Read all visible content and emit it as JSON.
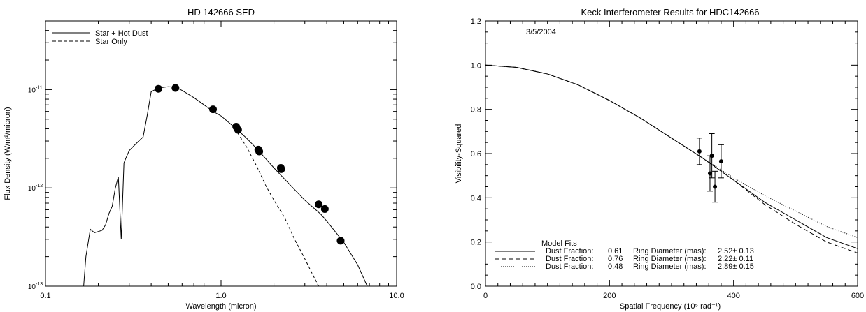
{
  "chart_data": [
    {
      "type": "line",
      "title": "HD 142666 SED",
      "xlabel": "Wavelength (micron)",
      "ylabel": "Flux Density (W/m²/micron)",
      "x_scale": "log",
      "y_scale": "log",
      "xlim": [
        0.1,
        10.0
      ],
      "ylim": [
        1e-13,
        5e-11
      ],
      "x_tick_labels": [
        {
          "value": 0.1,
          "label": "0.1"
        },
        {
          "value": 1.0,
          "label": "1.0"
        },
        {
          "value": 10.0,
          "label": "10.0"
        }
      ],
      "y_tick_labels": [
        {
          "value": 1e-13,
          "label": "10",
          "exp": "-13"
        },
        {
          "value": 1e-12,
          "label": "10",
          "exp": "-12"
        },
        {
          "value": 1e-11,
          "label": "10",
          "exp": "-11"
        }
      ],
      "legend": {
        "placement": "top-left",
        "entries": [
          {
            "label": "Star + Hot Dust",
            "style": "solid"
          },
          {
            "label": "Star Only",
            "style": "dashed"
          }
        ]
      },
      "series": [
        {
          "name": "Star + Hot Dust",
          "style": "solid",
          "x": [
            0.165,
            0.17,
            0.18,
            0.19,
            0.2,
            0.21,
            0.22,
            0.23,
            0.24,
            0.25,
            0.26,
            0.27,
            0.28,
            0.29,
            0.3,
            0.32,
            0.34,
            0.36,
            0.38,
            0.4,
            0.43,
            0.46,
            0.5,
            0.55,
            0.6,
            0.7,
            0.8,
            0.9,
            1.0,
            1.2,
            1.4,
            1.6,
            2.0,
            2.5,
            3.0,
            3.7,
            4.0,
            5.0,
            6.0,
            6.8
          ],
          "y": [
            1e-13,
            2e-13,
            3.8e-13,
            3.5e-13,
            3.6e-13,
            3.7e-13,
            4.2e-13,
            5.5e-13,
            6.5e-13,
            1e-12,
            1.3e-12,
            3e-13,
            1.8e-12,
            2.1e-12,
            2.4e-12,
            2.7e-12,
            3e-12,
            3.3e-12,
            5.5e-12,
            9.5e-12,
            1.02e-11,
            1.05e-11,
            1.07e-11,
            1.06e-11,
            9.8e-12,
            8.3e-12,
            7e-12,
            6e-12,
            5.4e-12,
            4.1e-12,
            3.2e-12,
            2.5e-12,
            1.6e-12,
            1.05e-12,
            7.5e-13,
            5.4e-13,
            4.6e-13,
            2.8e-13,
            1.65e-13,
            1e-13
          ]
        },
        {
          "name": "Star Only",
          "style": "dashed",
          "x": [
            1.2,
            1.4,
            1.6,
            1.8,
            2.0,
            2.3,
            2.6,
            3.0,
            3.3,
            3.6
          ],
          "y": [
            4e-12,
            2.6e-12,
            1.65e-12,
            1.05e-12,
            7.5e-13,
            5e-13,
            3.1e-13,
            1.9e-13,
            1.35e-13,
            1e-13
          ]
        }
      ],
      "points": {
        "x": [
          0.44,
          0.55,
          0.9,
          1.22,
          1.25,
          1.63,
          1.65,
          2.19,
          2.2,
          3.6,
          3.9,
          4.8
        ],
        "y": [
          1.02e-11,
          1.04e-11,
          6.3e-12,
          4.2e-12,
          3.9e-12,
          2.45e-12,
          2.35e-12,
          1.6e-12,
          1.55e-12,
          6.8e-13,
          6.1e-13,
          2.9e-13
        ]
      }
    },
    {
      "type": "line",
      "title": "Keck Interferometer Results for HDC142666",
      "xlabel": "Spatial Frequency (10⁵ rad⁻¹)",
      "ylabel": "Visibility-Squared",
      "annotation": "3/5/2004",
      "xlim": [
        0,
        600
      ],
      "ylim": [
        0.0,
        1.2
      ],
      "x_ticks": [
        0,
        200,
        400,
        600
      ],
      "x_tick_labels": [
        "0",
        "200",
        "400",
        "600"
      ],
      "y_ticks": [
        0.0,
        0.2,
        0.4,
        0.6,
        0.8,
        1.0,
        1.2
      ],
      "y_tick_labels": [
        "0.0",
        "0.2",
        "0.4",
        "0.6",
        "0.8",
        "1.0",
        "1.2"
      ],
      "legend": {
        "placement": "bottom-left",
        "heading": "Model Fits",
        "entries": [
          {
            "style": "solid",
            "dust_label": "Dust Fraction:",
            "dust_value": "0.61",
            "ring_label": "Ring Diameter (mas):",
            "ring_value": "2.52± 0.13"
          },
          {
            "style": "dashed",
            "dust_label": "Dust Fraction:",
            "dust_value": "0.76",
            "ring_label": "Ring Diameter (mas):",
            "ring_value": "2.22± 0.11"
          },
          {
            "style": "dotted",
            "dust_label": "Dust Fraction:",
            "dust_value": "0.48",
            "ring_label": "Ring Diameter (mas):",
            "ring_value": "2.89± 0.15"
          }
        ]
      },
      "series": [
        {
          "style": "solid",
          "x": [
            0,
            50,
            100,
            150,
            200,
            250,
            300,
            350,
            400,
            450,
            500,
            550,
            600
          ],
          "y": [
            1.0,
            0.99,
            0.96,
            0.91,
            0.84,
            0.76,
            0.67,
            0.58,
            0.48,
            0.38,
            0.3,
            0.22,
            0.17
          ]
        },
        {
          "style": "dashed",
          "x": [
            0,
            50,
            100,
            150,
            200,
            250,
            300,
            350,
            400,
            450,
            500,
            550,
            600
          ],
          "y": [
            1.0,
            0.99,
            0.96,
            0.91,
            0.84,
            0.76,
            0.67,
            0.58,
            0.48,
            0.37,
            0.28,
            0.2,
            0.15
          ]
        },
        {
          "style": "dotted",
          "x": [
            0,
            50,
            100,
            150,
            200,
            250,
            300,
            350,
            400,
            450,
            500,
            550,
            600
          ],
          "y": [
            1.0,
            0.99,
            0.96,
            0.91,
            0.84,
            0.76,
            0.67,
            0.58,
            0.49,
            0.41,
            0.34,
            0.27,
            0.22
          ]
        }
      ],
      "points": [
        {
          "x": 345,
          "y": 0.61,
          "err": 0.06
        },
        {
          "x": 362,
          "y": 0.51,
          "err": 0.08
        },
        {
          "x": 365,
          "y": 0.59,
          "err": 0.1
        },
        {
          "x": 370,
          "y": 0.45,
          "err": 0.07
        },
        {
          "x": 380,
          "y": 0.565,
          "err": 0.075
        }
      ]
    }
  ]
}
